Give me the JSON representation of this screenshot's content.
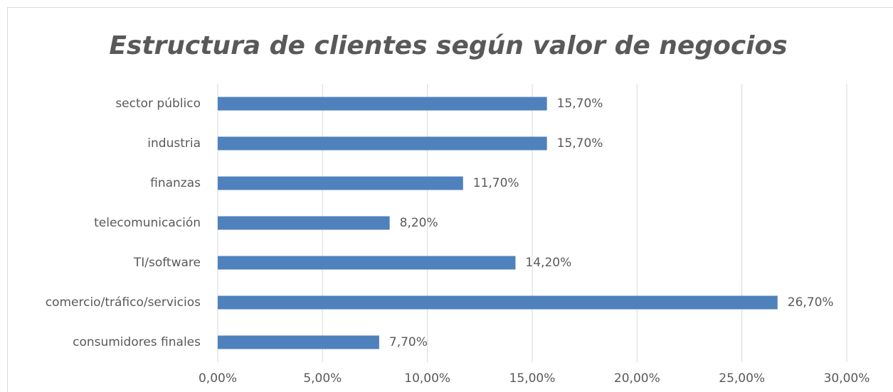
{
  "chart_data": {
    "type": "hbar",
    "title": "Estructura de clientes según valor de negocios",
    "categories": [
      "sector público",
      "industria",
      "finanzas",
      "telecomunicación",
      "TI/software",
      "comercio/tráfico/servicios",
      "consumidores finales"
    ],
    "values": [
      15.7,
      15.7,
      11.7,
      8.2,
      14.2,
      26.7,
      7.7
    ],
    "value_labels": [
      "15,70%",
      "15,70%",
      "11,70%",
      "8,20%",
      "14,20%",
      "26,70%",
      "7,70%"
    ],
    "color": "#4f81bd",
    "xlim": [
      0,
      30
    ],
    "xticks": [
      {
        "value": 0,
        "label": "0,00%"
      },
      {
        "value": 5,
        "label": "5,00%"
      },
      {
        "value": 10,
        "label": "10,00%"
      },
      {
        "value": 15,
        "label": "15,00%"
      },
      {
        "value": 20,
        "label": "20,00%"
      },
      {
        "value": 25,
        "label": "25,00%"
      },
      {
        "value": 30,
        "label": "30,00%"
      }
    ],
    "grid": true
  }
}
